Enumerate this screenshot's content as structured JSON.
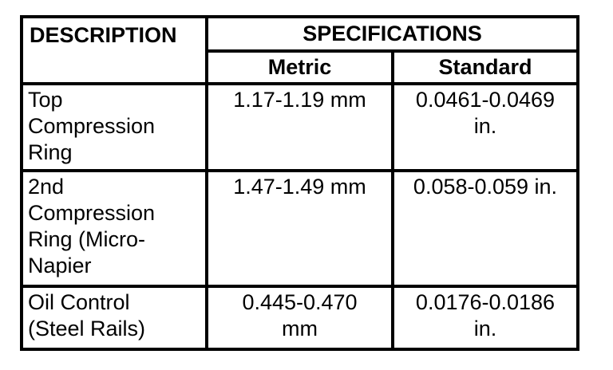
{
  "page": {
    "background_color": "#ffffff",
    "border_color": "#000000",
    "text_color": "#000000"
  },
  "table": {
    "headers": {
      "description": "DESCRIPTION",
      "specifications": "SPECIFICATIONS",
      "metric": "Metric",
      "standard": "Standard"
    },
    "rows": [
      {
        "description": "Top\nCompression\nRing",
        "metric": "1.17-1.19 mm",
        "standard": "0.0461-0.0469\nin."
      },
      {
        "description": "2nd\nCompression\nRing (Micro-\nNapier",
        "metric": "1.47-1.49 mm",
        "standard": "0.058-0.059 in."
      },
      {
        "description": "Oil Control\n(Steel Rails)",
        "metric": "0.445-0.470\nmm",
        "standard": "0.0176-0.0186\nin."
      }
    ]
  }
}
